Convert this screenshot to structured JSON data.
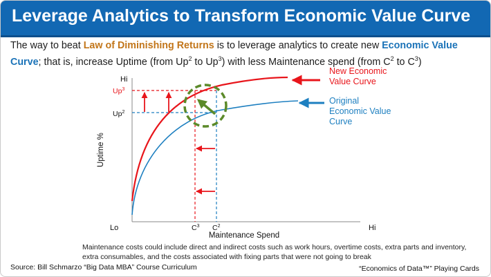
{
  "header": {
    "title": "Leverage Analytics to Transform Economic Value Curve"
  },
  "intro": {
    "t1": "The way to beat ",
    "law": "Law of Diminishing Returns",
    "t2": " is to leverage analytics to create new ",
    "evc": "Economic Value Curve",
    "t3": "; that is, increase Uptime (from Up",
    "s1": "2",
    "t4": " to Up",
    "s2": "3",
    "t5": ") with less Maintenance spend (from C",
    "s3": "2",
    "t6": " to C",
    "s4": "3",
    "t7": ")"
  },
  "chart": {
    "y_axis_label": "Uptime %",
    "x_axis_label": "Maintenance Spend",
    "y_hi": "Hi",
    "x_lo": "Lo",
    "x_hi": "Hi",
    "up3": "Up",
    "up3_sup": "3",
    "up2": "Up",
    "up2_sup": "2",
    "c3": "C",
    "c3_sup": "3",
    "c2": "C",
    "c2_sup": "2",
    "new_curve_line1": "New Economic",
    "new_curve_line2": "Value Curve",
    "orig_curve_line1": "Original",
    "orig_curve_line2": "Economic Value",
    "orig_curve_line3": "Curve",
    "colors": {
      "new_curve": "#e8151b",
      "original_curve": "#1d7fc0",
      "highlight_circle": "#5c8a2a"
    }
  },
  "footnote": "Maintenance costs could include direct and indirect costs such as work hours, overtime costs, extra parts and inventory, extra consumables, and the costs associated with fixing parts that were not going to break",
  "source": "Source: Bill Schmarzo “Big Data MBA” Course Curriculum",
  "credit": "“Economics of Data™” Playing Cards"
}
